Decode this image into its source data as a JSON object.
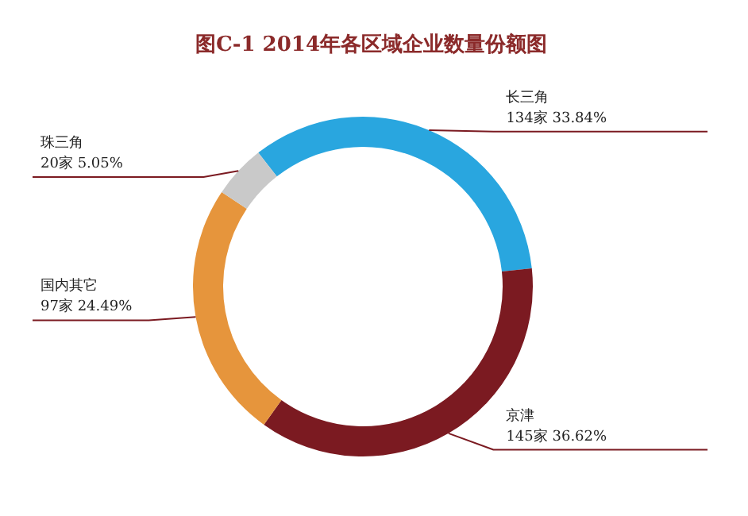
{
  "chart_data": {
    "type": "donut",
    "title": "图C-1  2014年各区域企业数量份额图",
    "categories": [
      "长三角",
      "京津",
      "国内其它",
      "珠三角"
    ],
    "values": [
      134,
      145,
      97,
      20
    ],
    "value_labels": [
      "134家   33.84%",
      "145家   36.62%",
      "97家   24.49%",
      "20家   5.05%"
    ],
    "colors": [
      "#29a6df",
      "#7b1a21",
      "#e6953c",
      "#c9c9c9"
    ]
  }
}
